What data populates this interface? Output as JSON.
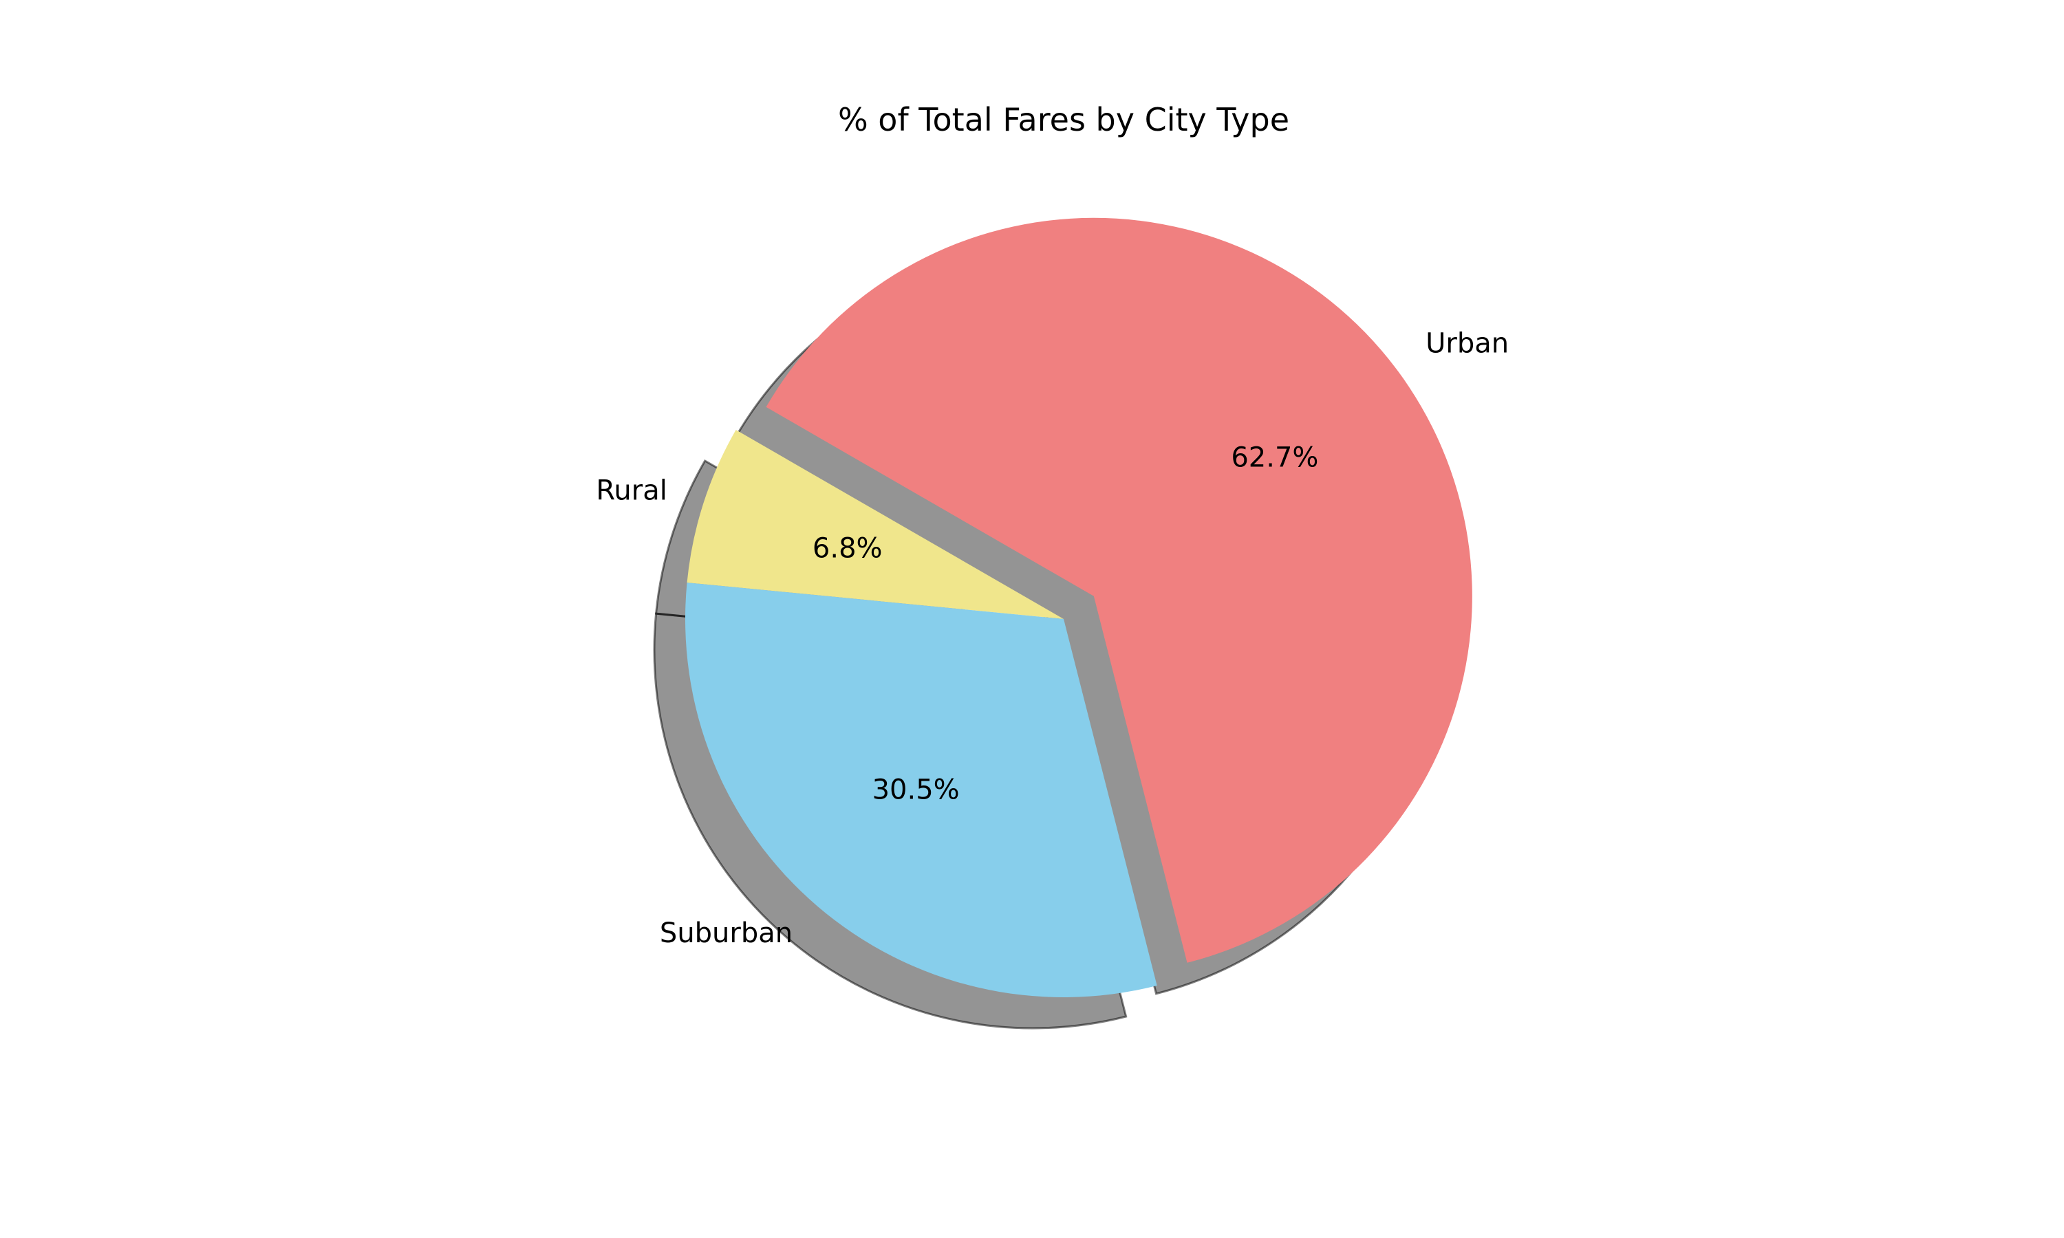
{
  "chart_data": {
    "type": "pie",
    "title": "% of Total Fares by City Type",
    "categories": [
      "Rural",
      "Suburban",
      "Urban"
    ],
    "values": [
      6.8,
      30.5,
      62.7
    ],
    "percent_labels": [
      "6.8%",
      "30.5%",
      "62.7%"
    ],
    "colors": [
      "#f0e68c",
      "#87ceeb",
      "#f08080"
    ],
    "start_angle_deg": 150,
    "explode": [
      0,
      0,
      0.1
    ],
    "shadow": true,
    "legend": "none"
  }
}
